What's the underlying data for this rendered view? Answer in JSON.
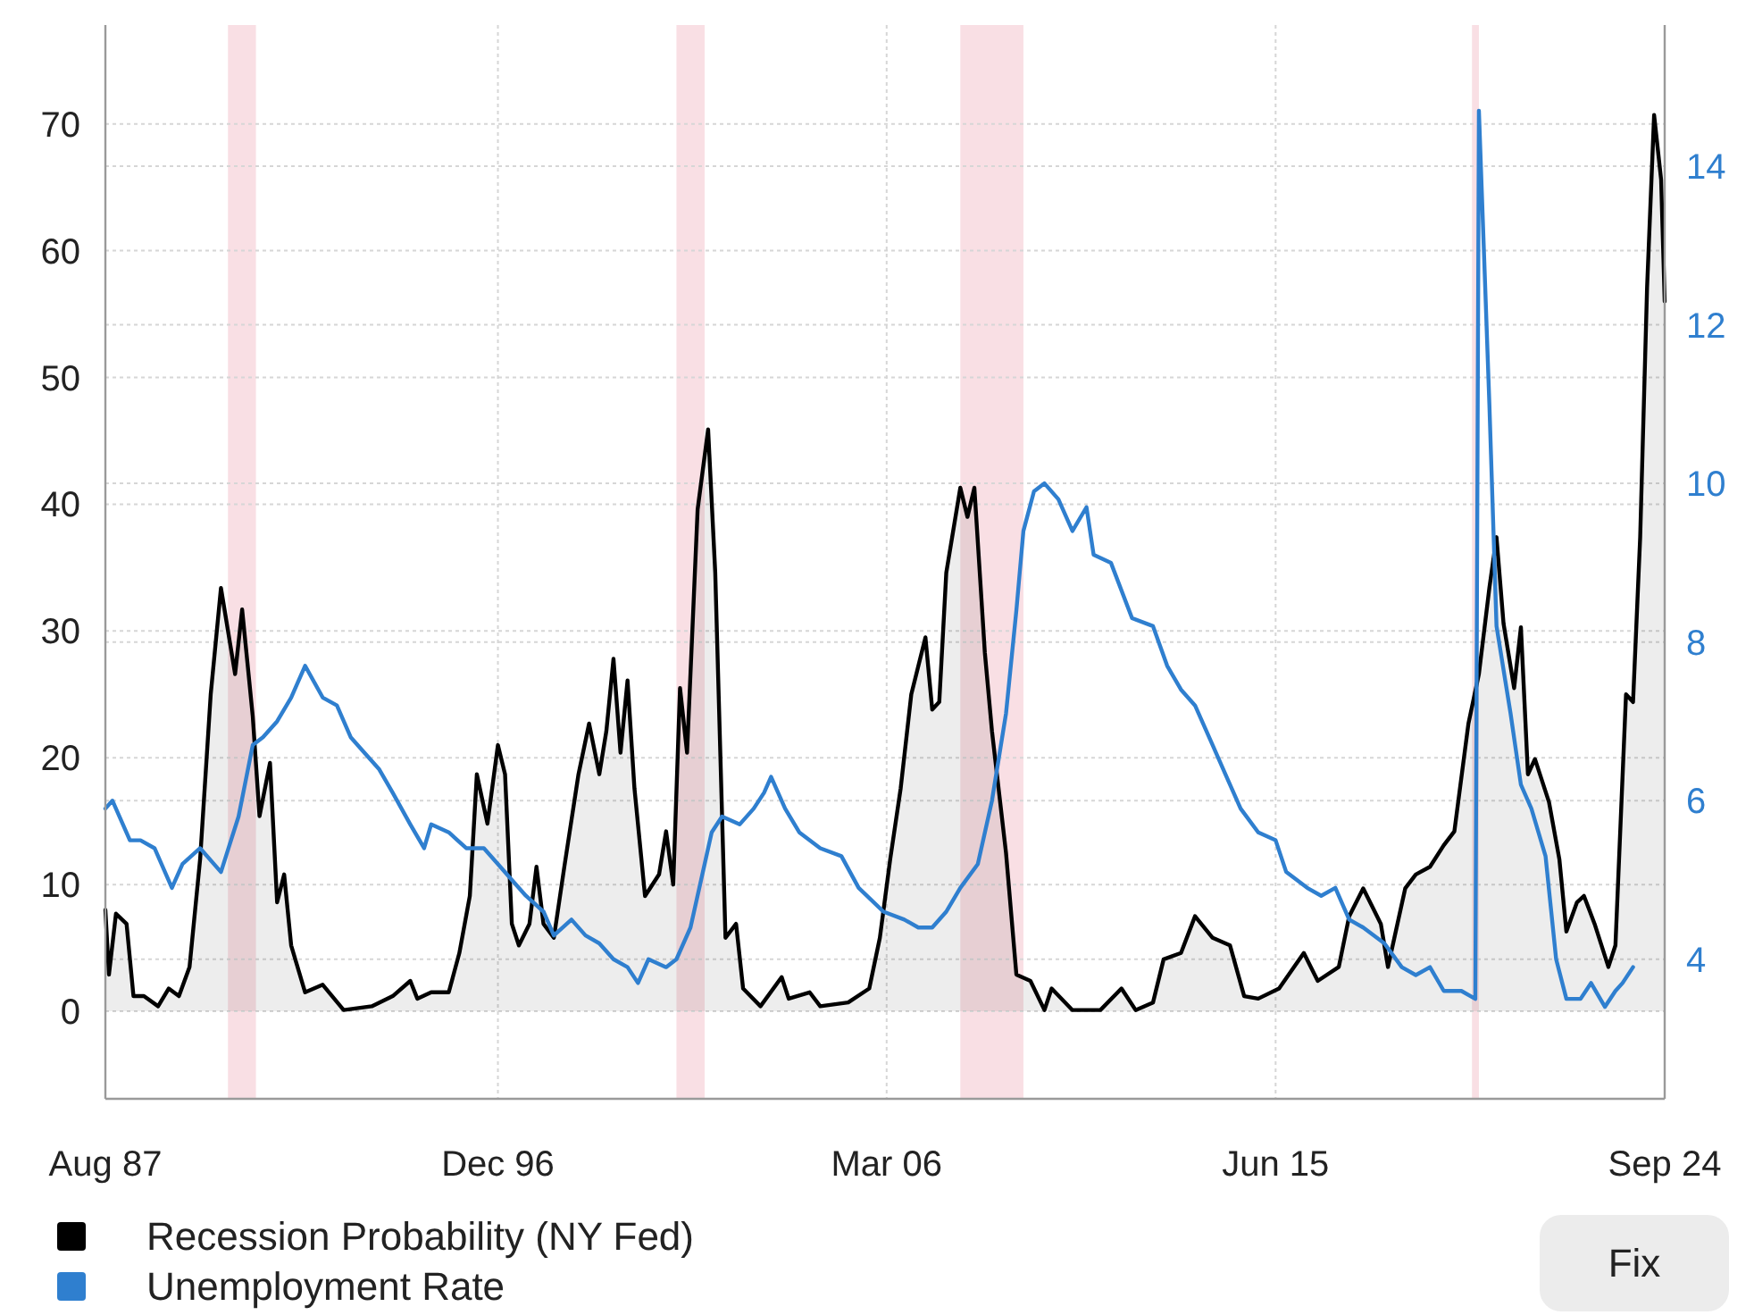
{
  "chart_data": {
    "type": "line",
    "xlim": [
      "1987-08",
      "2024-09"
    ],
    "xticks": [
      {
        "value": "1987-08",
        "label": "Aug 87"
      },
      {
        "value": "1996-12",
        "label": "Dec 96"
      },
      {
        "value": "2006-03",
        "label": "Mar 06"
      },
      {
        "value": "2015-06",
        "label": "Jun 15"
      },
      {
        "value": "2024-09",
        "label": "Sep 24"
      }
    ],
    "ylim": [
      -6.9,
      77.8
    ],
    "yticks": [
      0,
      10,
      20,
      30,
      40,
      50,
      60,
      70
    ],
    "y2lim": [
      2.24,
      15.78
    ],
    "y2ticks": [
      4,
      6,
      8,
      10,
      12,
      14
    ],
    "grid": true,
    "legend": "bottom",
    "bands": [
      {
        "axis": "x",
        "from": "1990-07",
        "to": "1991-03",
        "color": "#f9dfe4"
      },
      {
        "axis": "x",
        "from": "2001-03",
        "to": "2001-11",
        "color": "#f9dfe4"
      },
      {
        "axis": "x",
        "from": "2007-12",
        "to": "2009-06",
        "color": "#f9dfe4"
      },
      {
        "axis": "x",
        "from": "2020-02",
        "to": "2020-04",
        "color": "#f9dfe4"
      }
    ],
    "annotations": [
      "Fix"
    ],
    "series": [
      {
        "name": "Recession Probability (NY Fed)",
        "type": "area",
        "color": "#000000",
        "x": [
          "1987-08",
          "1987-09",
          "1987-11",
          "1988-02",
          "1988-04",
          "1988-07",
          "1988-11",
          "1989-02",
          "1989-05",
          "1989-08",
          "1989-11",
          "1990-02",
          "1990-05",
          "1990-09",
          "1990-11",
          "1991-02",
          "1991-04",
          "1991-07",
          "1991-09",
          "1991-11",
          "1992-01",
          "1992-05",
          "1992-10",
          "1993-04",
          "1993-12",
          "1994-06",
          "1994-11",
          "1995-01",
          "1995-05",
          "1995-10",
          "1996-01",
          "1996-04",
          "1996-06",
          "1996-09",
          "1996-12",
          "1997-02",
          "1997-04",
          "1997-06",
          "1997-09",
          "1997-11",
          "1998-01",
          "1998-04",
          "1998-07",
          "1998-11",
          "1999-02",
          "1999-05",
          "1999-07",
          "1999-09",
          "1999-11",
          "2000-01",
          "2000-03",
          "2000-06",
          "2000-10",
          "2000-12",
          "2001-02",
          "2001-04",
          "2001-06",
          "2001-09",
          "2001-12",
          "2002-02",
          "2002-05",
          "2002-08",
          "2002-10",
          "2003-03",
          "2003-09",
          "2003-11",
          "2004-05",
          "2004-08",
          "2005-04",
          "2005-10",
          "2006-01",
          "2006-04",
          "2006-07",
          "2006-10",
          "2007-02",
          "2007-04",
          "2007-06",
          "2007-08",
          "2007-12",
          "2008-02",
          "2008-04",
          "2008-07",
          "2008-09",
          "2009-01",
          "2009-04",
          "2009-08",
          "2009-12",
          "2010-02",
          "2010-08",
          "2011-04",
          "2011-10",
          "2012-02",
          "2012-07",
          "2012-10",
          "2013-03",
          "2013-07",
          "2013-12",
          "2014-05",
          "2014-09",
          "2015-01",
          "2015-07",
          "2016-02",
          "2016-06",
          "2016-12",
          "2017-03",
          "2017-07",
          "2017-12",
          "2018-02",
          "2018-07",
          "2018-10",
          "2019-02",
          "2019-06",
          "2019-09",
          "2020-01",
          "2020-04",
          "2020-07",
          "2020-09",
          "2020-11",
          "2021-02",
          "2021-04",
          "2021-06",
          "2021-08",
          "2021-12",
          "2022-03",
          "2022-05",
          "2022-08",
          "2022-10",
          "2023-01",
          "2023-05",
          "2023-07",
          "2023-10",
          "2023-12",
          "2024-02",
          "2024-04",
          "2024-06",
          "2024-08",
          "2024-09"
        ],
        "values": [
          8.0,
          2.9,
          7.7,
          6.9,
          1.2,
          1.2,
          0.4,
          1.8,
          1.2,
          3.5,
          12,
          25,
          33.4,
          26.6,
          31.7,
          23.3,
          15.4,
          19.6,
          8.6,
          10.8,
          5.2,
          1.5,
          2.1,
          0.1,
          0.4,
          1.2,
          2.4,
          1.0,
          1.5,
          1.5,
          4.6,
          9.1,
          18.7,
          14.8,
          21,
          18.7,
          6.9,
          5.2,
          6.9,
          11.4,
          6.9,
          5.8,
          11.4,
          18.7,
          22.7,
          18.7,
          22.1,
          27.8,
          20.4,
          26.1,
          17.6,
          9.1,
          10.8,
          14.2,
          10.0,
          25.5,
          20.4,
          39.6,
          45.9,
          34.6,
          5.8,
          6.9,
          1.8,
          0.4,
          2.7,
          1.0,
          1.5,
          0.4,
          0.7,
          1.8,
          5.8,
          12,
          17.6,
          25,
          29.5,
          23.8,
          24.4,
          34.6,
          41.3,
          39,
          41.3,
          28.3,
          22.1,
          12.5,
          2.9,
          2.4,
          0.1,
          1.8,
          0.1,
          0.1,
          1.8,
          0.1,
          0.7,
          4.1,
          4.6,
          7.5,
          5.8,
          5.2,
          1.2,
          1.0,
          1.8,
          4.6,
          2.4,
          3.5,
          7.5,
          9.7,
          6.9,
          3.5,
          9.7,
          10.8,
          11.4,
          13.1,
          14.2,
          22.7,
          26.6,
          33.4,
          37.4,
          30.6,
          25.5,
          30.3,
          18.7,
          19.9,
          16.5,
          12,
          6.3,
          8.6,
          9.1,
          6.9,
          3.5,
          5.2,
          25,
          24.4,
          37.4,
          57.1,
          70.7,
          65.6,
          56
        ]
      },
      {
        "name": "Unemployment Rate",
        "type": "line",
        "axis": "y2",
        "color": "#2f7fcf",
        "x": [
          "1987-08",
          "1987-10",
          "1988-03",
          "1988-06",
          "1988-10",
          "1989-03",
          "1989-06",
          "1989-11",
          "1990-05",
          "1990-10",
          "1991-02",
          "1991-05",
          "1991-09",
          "1992-01",
          "1992-05",
          "1992-10",
          "1993-02",
          "1993-06",
          "1993-10",
          "1994-02",
          "1994-06",
          "1994-11",
          "1995-03",
          "1995-05",
          "1995-10",
          "1996-03",
          "1996-08",
          "1996-12",
          "1997-04",
          "1997-08",
          "1998-01",
          "1998-04",
          "1998-09",
          "1999-01",
          "1999-05",
          "1999-09",
          "2000-01",
          "2000-04",
          "2000-07",
          "2000-12",
          "2001-03",
          "2001-07",
          "2001-10",
          "2002-01",
          "2002-04",
          "2002-09",
          "2003-01",
          "2003-04",
          "2003-06",
          "2003-10",
          "2004-02",
          "2004-08",
          "2005-02",
          "2005-07",
          "2006-02",
          "2006-08",
          "2006-12",
          "2007-04",
          "2007-08",
          "2007-12",
          "2008-05",
          "2008-09",
          "2009-01",
          "2009-04",
          "2009-06",
          "2009-09",
          "2009-12",
          "2010-04",
          "2010-08",
          "2010-12",
          "2011-02",
          "2011-07",
          "2012-01",
          "2012-07",
          "2012-11",
          "2013-03",
          "2013-07",
          "2013-12",
          "2014-04",
          "2014-08",
          "2015-01",
          "2015-06",
          "2015-09",
          "2016-03",
          "2016-07",
          "2016-11",
          "2017-03",
          "2017-07",
          "2018-01",
          "2018-06",
          "2018-10",
          "2019-02",
          "2019-06",
          "2019-11",
          "2020-03",
          "2020-04",
          "2020-07",
          "2020-09",
          "2021-01",
          "2021-04",
          "2021-07",
          "2021-11",
          "2022-02",
          "2022-05",
          "2022-09",
          "2022-12",
          "2023-04",
          "2023-07",
          "2023-09",
          "2023-12"
        ],
        "values": [
          5.9,
          6.0,
          5.5,
          5.5,
          5.4,
          4.9,
          5.2,
          5.4,
          5.1,
          5.8,
          6.7,
          6.8,
          7.0,
          7.3,
          7.7,
          7.3,
          7.2,
          6.8,
          6.6,
          6.4,
          6.1,
          5.7,
          5.4,
          5.7,
          5.6,
          5.4,
          5.4,
          5.2,
          5.0,
          4.8,
          4.6,
          4.3,
          4.5,
          4.3,
          4.2,
          4.0,
          3.9,
          3.7,
          4.0,
          3.9,
          4.0,
          4.4,
          5.0,
          5.6,
          5.8,
          5.7,
          5.9,
          6.1,
          6.3,
          5.9,
          5.6,
          5.4,
          5.3,
          4.9,
          4.6,
          4.5,
          4.4,
          4.4,
          4.6,
          4.9,
          5.2,
          6.0,
          7.1,
          8.4,
          9.4,
          9.9,
          10.0,
          9.8,
          9.4,
          9.7,
          9.1,
          9.0,
          8.3,
          8.2,
          7.7,
          7.4,
          7.2,
          6.7,
          6.3,
          5.9,
          5.6,
          5.5,
          5.1,
          4.9,
          4.8,
          4.9,
          4.5,
          4.4,
          4.2,
          3.9,
          3.8,
          3.9,
          3.6,
          3.6,
          3.5,
          14.7,
          11.0,
          8.2,
          7.1,
          6.2,
          5.9,
          5.3,
          4.0,
          3.5,
          3.5,
          3.7,
          3.4,
          3.6,
          3.7,
          3.9
        ]
      }
    ]
  }
}
